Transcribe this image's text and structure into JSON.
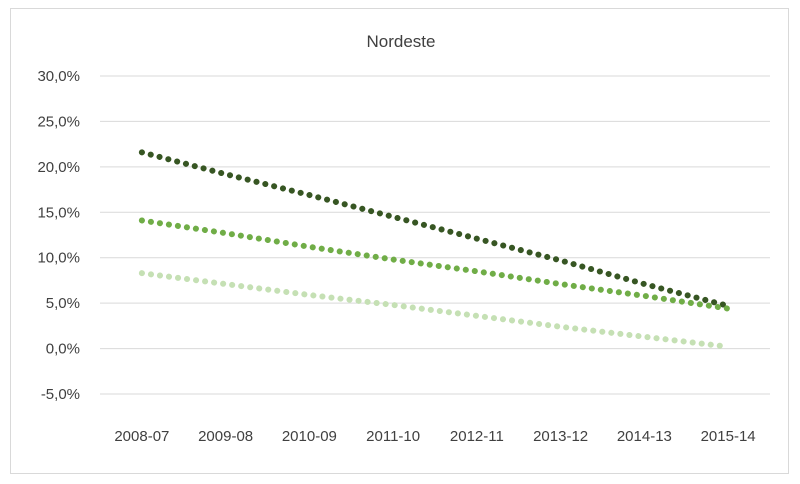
{
  "chart_data": {
    "type": "line",
    "title": "Nordeste",
    "xlabel": "",
    "ylabel": "",
    "categories": [
      "2008-07",
      "2009-08",
      "2010-09",
      "2011-10",
      "2012-11",
      "2013-12",
      "2014-13",
      "2015-14"
    ],
    "ylim": [
      -5,
      30
    ],
    "yticks": [
      -5,
      0,
      5,
      10,
      15,
      20,
      25,
      30
    ],
    "ytick_labels": [
      "-5,0%",
      "0,0%",
      "5,0%",
      "10,0%",
      "15,0%",
      "20,0%",
      "25,0%",
      "30,0%"
    ],
    "grid": true,
    "legend": "none",
    "series": [
      {
        "color": "#375623",
        "values": [
          21.6,
          19.2,
          16.9,
          14.5,
          12.1,
          9.7,
          7.1,
          4.7
        ]
      },
      {
        "color": "#70ad47",
        "values": [
          14.1,
          12.7,
          11.2,
          9.8,
          8.5,
          7.1,
          5.8,
          4.4
        ]
      },
      {
        "color": "#c5e0b4",
        "values": [
          8.3,
          7.1,
          5.9,
          4.8,
          3.6,
          2.4,
          1.3,
          0.2
        ]
      }
    ]
  }
}
